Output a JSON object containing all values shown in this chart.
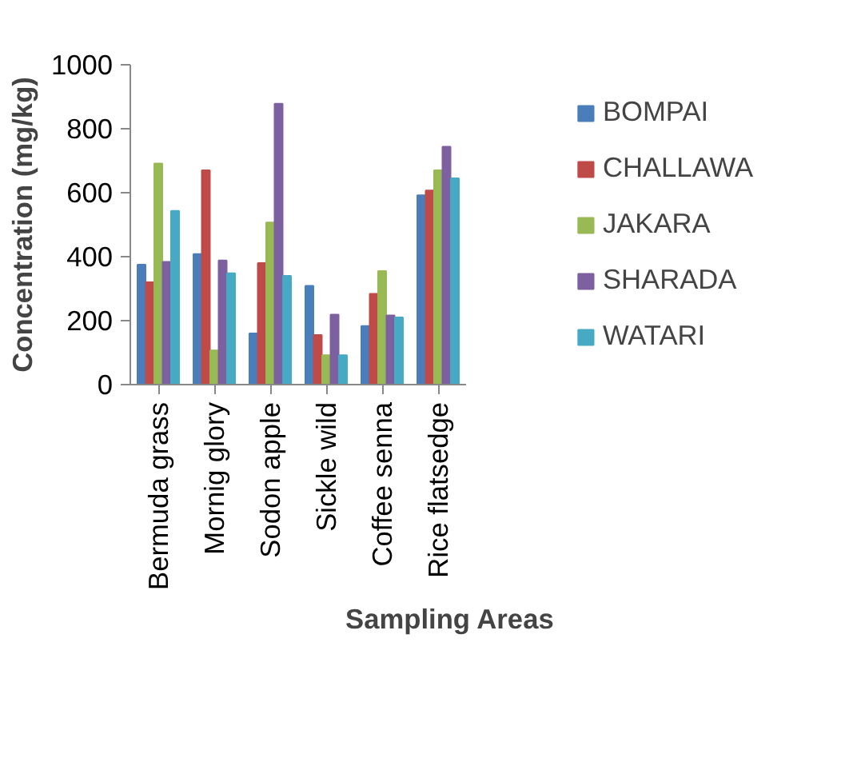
{
  "chart_data": {
    "type": "bar",
    "xlabel": "Sampling Areas",
    "ylabel": "Concentration (mg/kg)",
    "categories": [
      "Bermuda grass",
      "Mornig glory",
      "Sodon apple",
      "Sickle wild",
      "Coffee senna",
      "Rice flatsedge"
    ],
    "series": [
      {
        "name": "BOMPAI",
        "color": "#4a7ebb",
        "values": [
          375,
          408,
          160,
          309,
          183,
          592
        ]
      },
      {
        "name": "CHALLAWA",
        "color": "#be4b48",
        "values": [
          320,
          670,
          380,
          155,
          284,
          607
        ]
      },
      {
        "name": "JAKARA",
        "color": "#98b954",
        "values": [
          691,
          107,
          507,
          92,
          355,
          670
        ]
      },
      {
        "name": "SHARADA",
        "color": "#7d60a0",
        "values": [
          384,
          388,
          878,
          219,
          216,
          744
        ]
      },
      {
        "name": "WATARI",
        "color": "#46aac5",
        "values": [
          543,
          348,
          340,
          92,
          210,
          645
        ]
      }
    ],
    "ylim": [
      0,
      1000
    ],
    "yticks": [
      0,
      200,
      400,
      600,
      800,
      1000
    ],
    "grid": false,
    "legend": "right"
  }
}
